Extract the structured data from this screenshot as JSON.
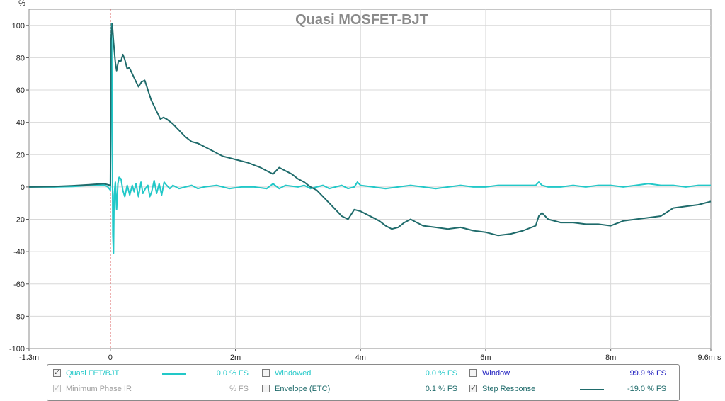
{
  "chart_data": {
    "type": "line",
    "title": "Quasi MOSFET-BJT",
    "ylabel": "%",
    "xlabel": "",
    "xlim": [
      -1.3,
      9.6
    ],
    "ylim": [
      -100,
      110
    ],
    "x_unit": "ms",
    "grid": true,
    "x_ticks": [
      {
        "value": -1.3,
        "label": "-1.3m"
      },
      {
        "value": 0,
        "label": "0"
      },
      {
        "value": 2,
        "label": "2m"
      },
      {
        "value": 4,
        "label": "4m"
      },
      {
        "value": 6,
        "label": "6m"
      },
      {
        "value": 8,
        "label": "8m"
      },
      {
        "value": 9.6,
        "label": "9.6m s"
      }
    ],
    "y_ticks": [
      {
        "value": 100,
        "label": "100"
      },
      {
        "value": 80,
        "label": "80"
      },
      {
        "value": 60,
        "label": "60"
      },
      {
        "value": 40,
        "label": "40"
      },
      {
        "value": 20,
        "label": "20"
      },
      {
        "value": 0,
        "label": "0"
      },
      {
        "value": -20,
        "label": "-20"
      },
      {
        "value": -40,
        "label": "-40"
      },
      {
        "value": -60,
        "label": "-60"
      },
      {
        "value": -80,
        "label": "-80"
      },
      {
        "value": -100,
        "label": "-100"
      }
    ],
    "marker_x": 0,
    "series": [
      {
        "name": "Quasi FET/BJT",
        "color": "#22c8c8",
        "points": [
          [
            -1.3,
            0
          ],
          [
            -0.9,
            0
          ],
          [
            -0.6,
            0.3
          ],
          [
            -0.3,
            1
          ],
          [
            -0.1,
            1.3
          ],
          [
            -0.04,
            0
          ],
          [
            0,
            -2
          ],
          [
            0.01,
            85
          ],
          [
            0.02,
            101
          ],
          [
            0.03,
            30
          ],
          [
            0.04,
            -30
          ],
          [
            0.05,
            -41
          ],
          [
            0.06,
            -5
          ],
          [
            0.08,
            3
          ],
          [
            0.1,
            -14
          ],
          [
            0.12,
            2
          ],
          [
            0.14,
            6
          ],
          [
            0.17,
            5
          ],
          [
            0.2,
            -2
          ],
          [
            0.23,
            -6
          ],
          [
            0.27,
            1
          ],
          [
            0.31,
            -5
          ],
          [
            0.35,
            1
          ],
          [
            0.38,
            -3
          ],
          [
            0.41,
            2
          ],
          [
            0.45,
            -6
          ],
          [
            0.49,
            3
          ],
          [
            0.52,
            -4
          ],
          [
            0.56,
            -1
          ],
          [
            0.6,
            1
          ],
          [
            0.63,
            -6
          ],
          [
            0.66,
            -3
          ],
          [
            0.7,
            4
          ],
          [
            0.74,
            -4
          ],
          [
            0.78,
            2
          ],
          [
            0.82,
            -5
          ],
          [
            0.86,
            3
          ],
          [
            0.9,
            1
          ],
          [
            0.95,
            -1
          ],
          [
            1.0,
            1
          ],
          [
            1.1,
            -1
          ],
          [
            1.2,
            0
          ],
          [
            1.3,
            1
          ],
          [
            1.4,
            -1
          ],
          [
            1.5,
            0
          ],
          [
            1.7,
            1
          ],
          [
            1.9,
            -1
          ],
          [
            2.1,
            0
          ],
          [
            2.3,
            0
          ],
          [
            2.5,
            -1
          ],
          [
            2.6,
            2
          ],
          [
            2.7,
            -1
          ],
          [
            2.8,
            1
          ],
          [
            3.0,
            0
          ],
          [
            3.1,
            1
          ],
          [
            3.2,
            -1
          ],
          [
            3.3,
            0
          ],
          [
            3.4,
            1
          ],
          [
            3.5,
            -1
          ],
          [
            3.6,
            0
          ],
          [
            3.7,
            1
          ],
          [
            3.8,
            -1
          ],
          [
            3.9,
            0
          ],
          [
            3.95,
            3
          ],
          [
            4.0,
            1
          ],
          [
            4.2,
            0
          ],
          [
            4.4,
            -1
          ],
          [
            4.6,
            0
          ],
          [
            4.8,
            1
          ],
          [
            5.0,
            0
          ],
          [
            5.2,
            -1
          ],
          [
            5.4,
            0
          ],
          [
            5.6,
            1
          ],
          [
            5.8,
            0
          ],
          [
            6.0,
            0
          ],
          [
            6.2,
            1
          ],
          [
            6.4,
            1
          ],
          [
            6.6,
            1
          ],
          [
            6.8,
            1
          ],
          [
            6.85,
            3
          ],
          [
            6.9,
            1
          ],
          [
            7.0,
            0
          ],
          [
            7.2,
            0
          ],
          [
            7.4,
            1
          ],
          [
            7.6,
            0
          ],
          [
            7.8,
            1
          ],
          [
            8.0,
            1
          ],
          [
            8.2,
            0
          ],
          [
            8.4,
            1
          ],
          [
            8.6,
            2
          ],
          [
            8.8,
            1
          ],
          [
            9.0,
            1
          ],
          [
            9.2,
            0
          ],
          [
            9.4,
            1
          ],
          [
            9.6,
            1
          ]
        ]
      },
      {
        "name": "Step Response",
        "color": "#1f6b6b",
        "points": [
          [
            -1.3,
            0
          ],
          [
            -0.9,
            0.3
          ],
          [
            -0.6,
            0.8
          ],
          [
            -0.3,
            1.5
          ],
          [
            -0.1,
            2
          ],
          [
            0,
            1
          ],
          [
            0.01,
            90
          ],
          [
            0.03,
            101
          ],
          [
            0.05,
            90
          ],
          [
            0.08,
            77
          ],
          [
            0.1,
            72
          ],
          [
            0.13,
            78
          ],
          [
            0.17,
            78
          ],
          [
            0.2,
            82
          ],
          [
            0.23,
            79
          ],
          [
            0.27,
            73
          ],
          [
            0.3,
            74
          ],
          [
            0.35,
            70
          ],
          [
            0.4,
            66
          ],
          [
            0.45,
            62
          ],
          [
            0.5,
            65
          ],
          [
            0.55,
            66
          ],
          [
            0.6,
            60
          ],
          [
            0.65,
            54
          ],
          [
            0.7,
            50
          ],
          [
            0.75,
            46
          ],
          [
            0.8,
            42
          ],
          [
            0.85,
            43
          ],
          [
            0.9,
            42
          ],
          [
            1.0,
            39
          ],
          [
            1.1,
            35
          ],
          [
            1.2,
            31
          ],
          [
            1.3,
            28
          ],
          [
            1.4,
            27
          ],
          [
            1.5,
            25
          ],
          [
            1.6,
            23
          ],
          [
            1.7,
            21
          ],
          [
            1.8,
            19
          ],
          [
            1.9,
            18
          ],
          [
            2.0,
            17
          ],
          [
            2.2,
            15
          ],
          [
            2.4,
            12
          ],
          [
            2.5,
            10
          ],
          [
            2.6,
            8
          ],
          [
            2.7,
            12
          ],
          [
            2.8,
            10
          ],
          [
            2.9,
            8
          ],
          [
            3.0,
            5
          ],
          [
            3.1,
            3
          ],
          [
            3.2,
            0
          ],
          [
            3.3,
            -2
          ],
          [
            3.4,
            -6
          ],
          [
            3.5,
            -10
          ],
          [
            3.6,
            -14
          ],
          [
            3.7,
            -18
          ],
          [
            3.8,
            -20
          ],
          [
            3.85,
            -17
          ],
          [
            3.9,
            -14
          ],
          [
            4.0,
            -15
          ],
          [
            4.1,
            -17
          ],
          [
            4.2,
            -19
          ],
          [
            4.3,
            -21
          ],
          [
            4.4,
            -24
          ],
          [
            4.5,
            -26
          ],
          [
            4.6,
            -25
          ],
          [
            4.7,
            -22
          ],
          [
            4.8,
            -20
          ],
          [
            4.9,
            -22
          ],
          [
            5.0,
            -24
          ],
          [
            5.2,
            -25
          ],
          [
            5.4,
            -26
          ],
          [
            5.6,
            -25
          ],
          [
            5.8,
            -27
          ],
          [
            6.0,
            -28
          ],
          [
            6.2,
            -30
          ],
          [
            6.4,
            -29
          ],
          [
            6.6,
            -27
          ],
          [
            6.8,
            -24
          ],
          [
            6.85,
            -18
          ],
          [
            6.9,
            -16
          ],
          [
            7.0,
            -20
          ],
          [
            7.2,
            -22
          ],
          [
            7.4,
            -22
          ],
          [
            7.6,
            -23
          ],
          [
            7.8,
            -23
          ],
          [
            8.0,
            -24
          ],
          [
            8.2,
            -21
          ],
          [
            8.4,
            -20
          ],
          [
            8.6,
            -19
          ],
          [
            8.8,
            -18
          ],
          [
            9.0,
            -13
          ],
          [
            9.2,
            -12
          ],
          [
            9.4,
            -11
          ],
          [
            9.6,
            -9
          ]
        ]
      }
    ]
  },
  "legend": {
    "rows": [
      [
        {
          "checked": true,
          "enabled": true,
          "label": "Quasi FET/BJT",
          "label_color": "#22c8c8",
          "line_color": "#22c8c8",
          "value": "0.0 % FS",
          "value_color": "#22c8c8"
        },
        {
          "checked": false,
          "enabled": true,
          "label": "Windowed",
          "label_color": "#22c8c8",
          "line_color": "",
          "value": "0.0 % FS",
          "value_color": "#22c8c8"
        },
        {
          "checked": false,
          "enabled": true,
          "label": "Window",
          "label_color": "#2020c0",
          "line_color": "",
          "value": "99.9 % FS",
          "value_color": "#2020c0"
        }
      ],
      [
        {
          "checked": true,
          "enabled": false,
          "label": "Minimum Phase IR",
          "label_color": "#a0a0a0",
          "line_color": "",
          "value": "% FS",
          "value_color": "#a0a0a0"
        },
        {
          "checked": false,
          "enabled": true,
          "label": "Envelope (ETC)",
          "label_color": "#1f6b6b",
          "line_color": "",
          "value": "0.1 % FS",
          "value_color": "#1f6b6b"
        },
        {
          "checked": true,
          "enabled": true,
          "label": "Step Response",
          "label_color": "#1f6b6b",
          "line_color": "#1f6b6b",
          "value": "-19.0 % FS",
          "value_color": "#1f6b6b"
        }
      ]
    ]
  }
}
